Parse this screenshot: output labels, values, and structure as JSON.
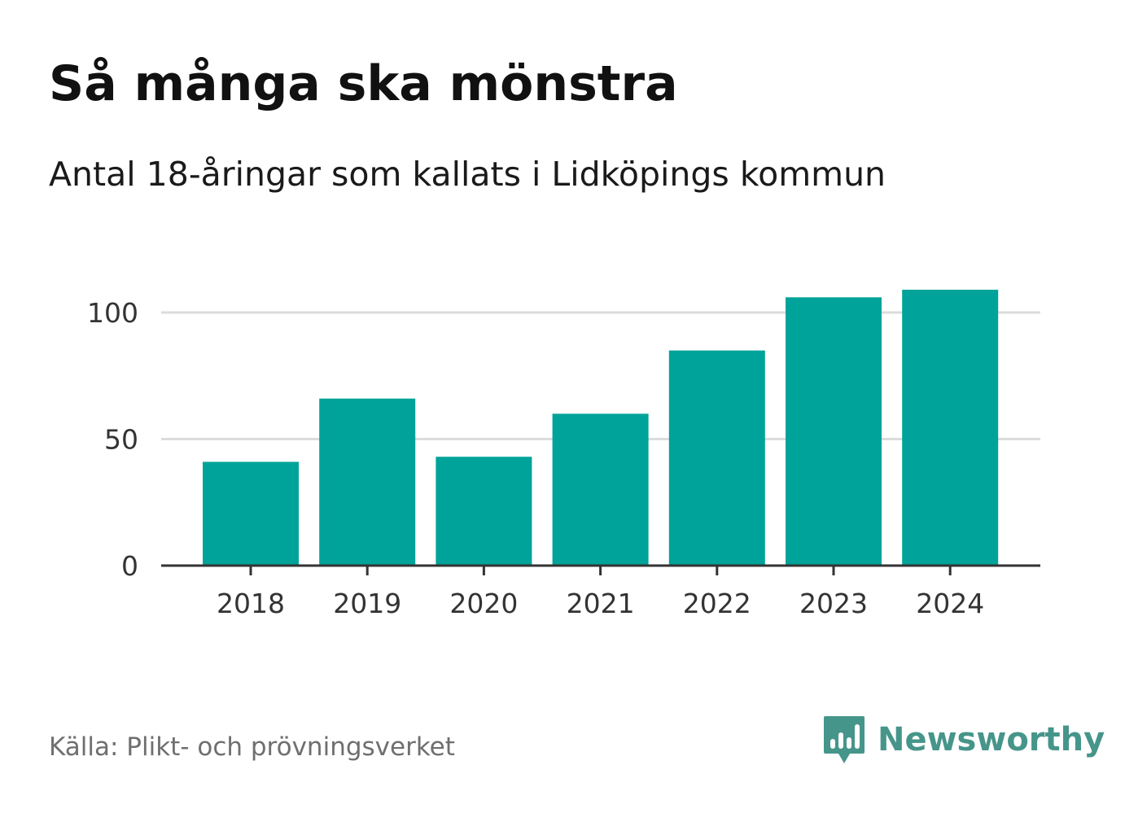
{
  "title": "Så många ska mönstra",
  "subtitle": "Antal 18-åringar som kallats i Lidköpings kommun",
  "source": "Källa: Plikt- och prövningsverket",
  "brand": {
    "name": "Newsworthy",
    "icon": "newsworthy-logo-icon",
    "color": "#46958a"
  },
  "colors": {
    "bar": "#00a399",
    "grid": "#dcdcdc",
    "axis": "#333333",
    "tick_text": "#333333"
  },
  "chart_data": {
    "type": "bar",
    "title": "Så många ska mönstra",
    "subtitle": "Antal 18-åringar som kallats i Lidköpings kommun",
    "categories": [
      "2018",
      "2019",
      "2020",
      "2021",
      "2022",
      "2023",
      "2024"
    ],
    "values": [
      41,
      66,
      43,
      60,
      85,
      106,
      109
    ],
    "yticks": [
      0,
      50,
      100
    ],
    "ylim": [
      0,
      120
    ],
    "xlabel": "",
    "ylabel": "",
    "grid": true,
    "legend": "none"
  }
}
